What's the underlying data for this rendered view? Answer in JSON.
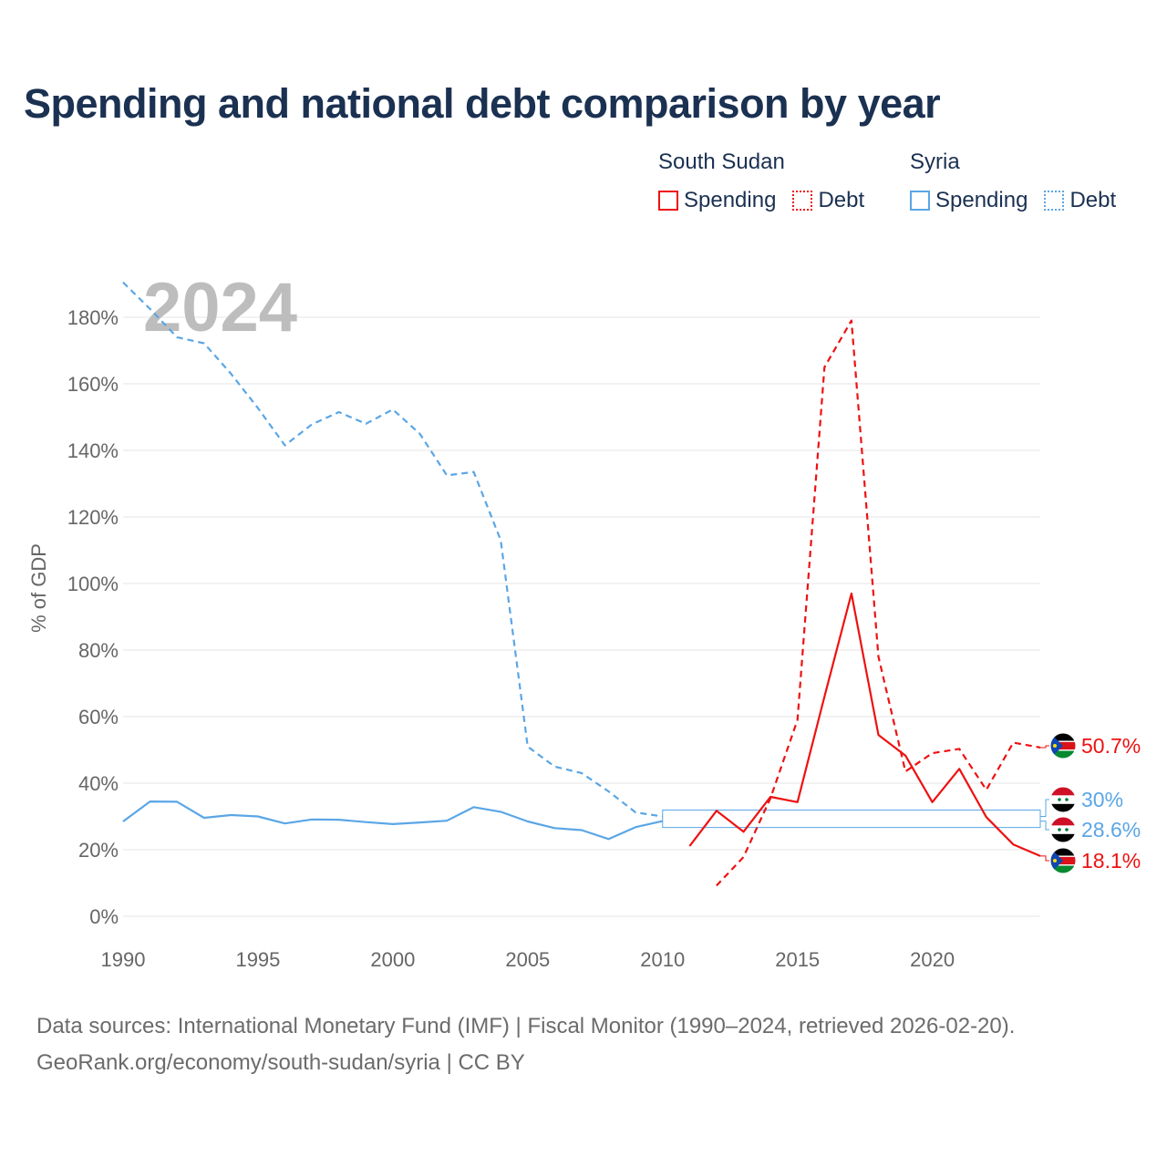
{
  "chart_data": {
    "type": "line",
    "title": "Spending and national debt comparison by year",
    "year_watermark": "2024",
    "ylabel": "% of GDP",
    "xlabel": "",
    "xlim": [
      1990,
      2024
    ],
    "ylim": [
      0,
      190
    ],
    "yticks": [
      0,
      20,
      40,
      60,
      80,
      100,
      120,
      140,
      160,
      180
    ],
    "ytick_labels": [
      "0%",
      "20%",
      "40%",
      "60%",
      "80%",
      "100%",
      "120%",
      "140%",
      "160%",
      "180%"
    ],
    "xticks": [
      1990,
      1995,
      2000,
      2005,
      2010,
      2015,
      2020
    ],
    "xtick_labels": [
      "1990",
      "1995",
      "2000",
      "2005",
      "2010",
      "2015",
      "2020"
    ],
    "legend": {
      "groups": [
        {
          "name": "South Sudan",
          "color": "#ee1111",
          "items": [
            "Spending",
            "Debt"
          ]
        },
        {
          "name": "Syria",
          "color": "#5aa6e6",
          "items": [
            "Spending",
            "Debt"
          ]
        }
      ]
    },
    "series": [
      {
        "name": "Syria Debt",
        "country": "Syria",
        "kind": "Debt",
        "color": "#5aa6e6",
        "dash": "dashed",
        "x": [
          1990,
          1991,
          1992,
          1993,
          1994,
          1995,
          1996,
          1997,
          1998,
          1999,
          2000,
          2001,
          2002,
          2003,
          2004,
          2005,
          2006,
          2007,
          2008,
          2009,
          2010
        ],
        "values": [
          190.5,
          182.5,
          174,
          172.2,
          163,
          152.7,
          141.5,
          147.8,
          151.5,
          148,
          152.3,
          145,
          132.5,
          133.5,
          113,
          51,
          45,
          43,
          37.5,
          31.2,
          30
        ]
      },
      {
        "name": "Syria Spending",
        "country": "Syria",
        "kind": "Spending",
        "color": "#5aa6e6",
        "dash": "solid",
        "x": [
          1990,
          1991,
          1992,
          1993,
          1994,
          1995,
          1996,
          1997,
          1998,
          1999,
          2000,
          2001,
          2002,
          2003,
          2004,
          2005,
          2006,
          2007,
          2008,
          2009,
          2010
        ],
        "values": [
          28.5,
          34.5,
          34.4,
          29.6,
          30.4,
          30,
          27.9,
          29.1,
          29,
          28.3,
          27.7,
          28.2,
          28.7,
          32.8,
          31.4,
          28.5,
          26.5,
          25.9,
          23.2,
          26.8,
          28.6
        ]
      },
      {
        "name": "South Sudan Debt",
        "country": "South Sudan",
        "kind": "Debt",
        "color": "#ee1111",
        "dash": "dashed",
        "x": [
          2012,
          2013,
          2014,
          2015,
          2016,
          2017,
          2018,
          2019,
          2020,
          2021,
          2022,
          2023,
          2024
        ],
        "values": [
          9.2,
          17.8,
          35.5,
          59,
          165,
          179,
          78,
          43.5,
          49,
          50.3,
          38,
          52.2,
          50.7
        ]
      },
      {
        "name": "South Sudan Spending",
        "country": "South Sudan",
        "kind": "Spending",
        "color": "#ee1111",
        "dash": "solid",
        "x": [
          2011,
          2012,
          2013,
          2014,
          2015,
          2016,
          2017,
          2018,
          2019,
          2020,
          2021,
          2022,
          2023,
          2024
        ],
        "values": [
          21.1,
          31.7,
          25.4,
          35.9,
          34.3,
          66,
          97,
          54.5,
          48.3,
          34.3,
          44.3,
          29.8,
          21.6,
          18.1
        ]
      }
    ],
    "end_labels": [
      {
        "series": "South Sudan Debt",
        "text": "50.7%",
        "value": 50.7,
        "color": "#ee1111",
        "flag": "south-sudan"
      },
      {
        "series": "Syria Debt",
        "text": "30%",
        "value": 30,
        "color": "#5aa6e6",
        "flag": "syria"
      },
      {
        "series": "Syria Spending",
        "text": "28.6%",
        "value": 28.6,
        "color": "#5aa6e6",
        "flag": "syria"
      },
      {
        "series": "South Sudan Spending",
        "text": "18.1%",
        "value": 18.1,
        "color": "#ee1111",
        "flag": "south-sudan"
      }
    ]
  },
  "footer": {
    "sources": "Data sources: International Monetary Fund (IMF) | Fiscal Monitor (1990–2024, retrieved 2026-02-20).",
    "attribution": "GeoRank.org/economy/south-sudan/syria | CC BY"
  },
  "colors": {
    "south_sudan": "#ee1111",
    "syria": "#5aa6e6",
    "title": "#1b3152",
    "grid": "#e6e6e6",
    "axis_text": "#666666",
    "watermark": "#bdbdbd"
  }
}
